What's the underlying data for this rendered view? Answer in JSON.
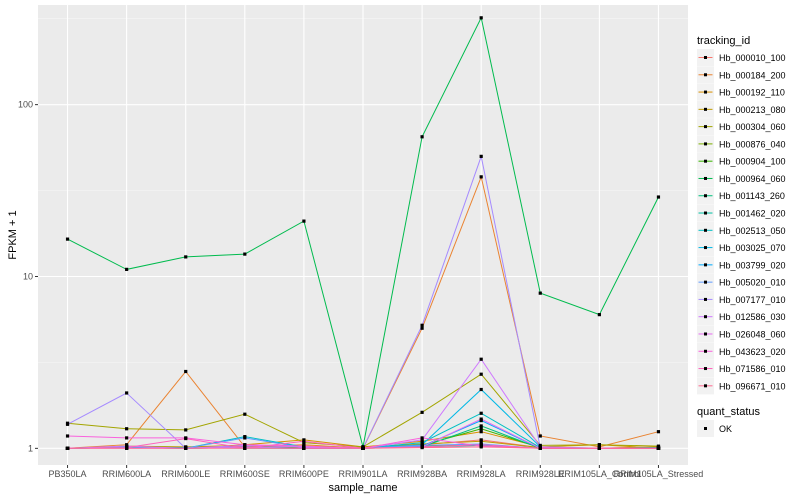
{
  "chart_data": {
    "type": "line",
    "title": "",
    "xlabel": "sample_name",
    "ylabel": "FPKM + 1",
    "y_scale": "log10",
    "ylim": [
      0.8,
      380
    ],
    "y_ticks": [
      1,
      10,
      100
    ],
    "categories": [
      "PB350LA",
      "RRIM600LA",
      "RRIM600LE",
      "RRIM600SE",
      "RRIM600PE",
      "RRIM901LA",
      "RRIM928BA",
      "RRIM928LA",
      "RRIM928LE",
      "RRIM105LA_Control",
      "RRIM105LA_Stressed"
    ],
    "legend_title": "tracking_id",
    "shape_legend_title": "quant_status",
    "shape_legend_entries": [
      "OK"
    ],
    "series": [
      {
        "name": "Hb_000010_100",
        "color": "#F8766D",
        "values": [
          1.0,
          1.02,
          1.01,
          1.03,
          1.02,
          1.0,
          1.05,
          1.12,
          1.01,
          1.0,
          1.02
        ]
      },
      {
        "name": "Hb_000184_200",
        "color": "#EA8331",
        "values": [
          1.0,
          1.05,
          2.8,
          1.02,
          1.05,
          1.0,
          5.0,
          38.0,
          1.18,
          1.02,
          1.25
        ]
      },
      {
        "name": "Hb_000192_110",
        "color": "#D89000",
        "values": [
          1.0,
          1.02,
          1.0,
          1.05,
          1.12,
          1.02,
          1.1,
          1.25,
          1.02,
          1.05,
          1.0
        ]
      },
      {
        "name": "Hb_000213_080",
        "color": "#C09B00",
        "values": [
          1.0,
          1.03,
          1.02,
          1.04,
          1.03,
          1.01,
          1.06,
          1.1,
          1.01,
          1.0,
          1.02
        ]
      },
      {
        "name": "Hb_000304_060",
        "color": "#A3A500",
        "values": [
          1.4,
          1.3,
          1.28,
          1.58,
          1.08,
          1.02,
          1.62,
          2.7,
          1.04,
          1.05,
          1.03
        ]
      },
      {
        "name": "Hb_000876_040",
        "color": "#7CAE00",
        "values": [
          1.0,
          1.01,
          1.0,
          1.01,
          1.0,
          1.0,
          1.03,
          1.05,
          1.0,
          1.0,
          1.0
        ]
      },
      {
        "name": "Hb_000904_100",
        "color": "#39B600",
        "values": [
          1.0,
          1.02,
          1.01,
          1.02,
          1.01,
          1.0,
          1.04,
          1.3,
          1.01,
          1.0,
          1.01
        ]
      },
      {
        "name": "Hb_000964_060",
        "color": "#00BB4E",
        "values": [
          16.5,
          11.0,
          13.0,
          13.5,
          21.0,
          1.02,
          65.0,
          320.0,
          8.0,
          6.0,
          29.0
        ]
      },
      {
        "name": "Hb_001143_260",
        "color": "#00BF7D",
        "values": [
          1.0,
          1.01,
          1.0,
          1.01,
          1.0,
          1.0,
          1.02,
          1.35,
          1.0,
          1.0,
          1.0
        ]
      },
      {
        "name": "Hb_001462_020",
        "color": "#00C1A3",
        "values": [
          1.0,
          1.01,
          1.01,
          1.0,
          1.0,
          1.0,
          1.02,
          1.04,
          1.0,
          1.0,
          1.0
        ]
      },
      {
        "name": "Hb_002513_050",
        "color": "#00BFC4",
        "values": [
          1.0,
          1.02,
          1.0,
          1.17,
          1.02,
          1.0,
          1.08,
          1.6,
          1.01,
          1.0,
          1.01
        ]
      },
      {
        "name": "Hb_003025_070",
        "color": "#00B8E5",
        "values": [
          1.0,
          1.01,
          1.0,
          1.02,
          1.0,
          1.0,
          1.05,
          2.2,
          1.02,
          1.0,
          1.0
        ]
      },
      {
        "name": "Hb_003799_020",
        "color": "#00ABFD",
        "values": [
          1.0,
          1.01,
          1.0,
          1.01,
          1.0,
          1.0,
          1.03,
          1.45,
          1.0,
          1.0,
          1.0
        ]
      },
      {
        "name": "Hb_005020_010",
        "color": "#619CFF",
        "values": [
          1.0,
          1.01,
          1.0,
          1.15,
          1.01,
          1.0,
          1.04,
          1.06,
          1.0,
          1.0,
          1.0
        ]
      },
      {
        "name": "Hb_007177_010",
        "color": "#A58AFF",
        "values": [
          1.38,
          2.1,
          1.0,
          1.02,
          1.0,
          1.0,
          5.2,
          50.0,
          1.01,
          1.0,
          1.0
        ]
      },
      {
        "name": "Hb_012586_030",
        "color": "#CF78FF",
        "values": [
          1.0,
          1.03,
          1.0,
          1.04,
          1.02,
          1.0,
          1.12,
          3.3,
          1.02,
          1.0,
          1.0
        ]
      },
      {
        "name": "Hb_026048_060",
        "color": "#E76BF3",
        "values": [
          1.0,
          1.0,
          1.0,
          1.01,
          1.0,
          1.0,
          1.02,
          1.48,
          1.0,
          1.0,
          1.0
        ]
      },
      {
        "name": "Hb_043623_020",
        "color": "#F962DD",
        "values": [
          1.18,
          1.15,
          1.15,
          1.05,
          1.03,
          1.0,
          1.15,
          1.03,
          1.0,
          1.0,
          1.0
        ]
      },
      {
        "name": "Hb_071586_010",
        "color": "#FF62BC",
        "values": [
          1.0,
          1.01,
          1.14,
          1.0,
          1.1,
          1.0,
          1.02,
          1.05,
          1.0,
          1.0,
          1.0
        ]
      },
      {
        "name": "Hb_096671_010",
        "color": "#FF6C91",
        "values": [
          1.0,
          1.0,
          1.0,
          1.0,
          1.0,
          1.0,
          1.01,
          1.02,
          1.0,
          1.0,
          1.0
        ]
      }
    ]
  }
}
